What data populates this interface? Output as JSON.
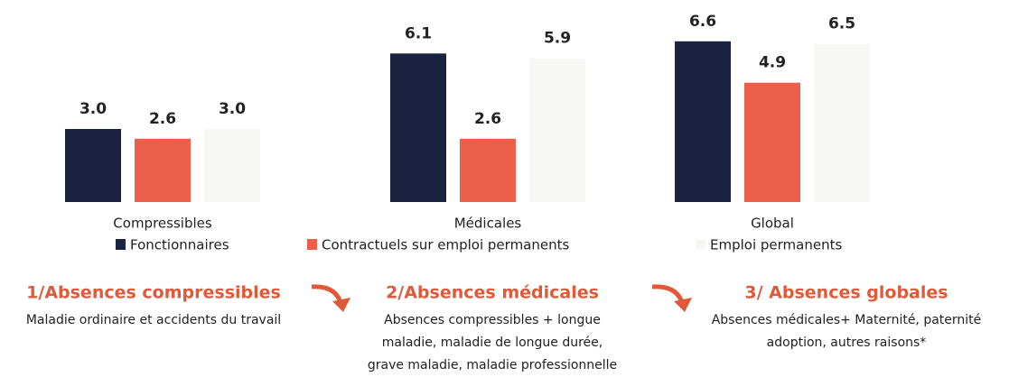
{
  "chart_data": {
    "type": "bar",
    "categories": [
      "Compressibles",
      "Médicales",
      "Global"
    ],
    "series": [
      {
        "name": "Fonctionnaires",
        "color": "#1c2340",
        "values": [
          3.0,
          6.1,
          6.6
        ],
        "value_labels": [
          "3.0",
          "6.1",
          "6.6"
        ]
      },
      {
        "name": "Contractuels sur emploi permanents",
        "color": "#ec5f4a",
        "values": [
          2.6,
          2.6,
          4.9
        ],
        "value_labels": [
          "2.6",
          "2.6",
          "4.9"
        ]
      },
      {
        "name": "Emploi permanents",
        "color": "#f7f7f5",
        "values": [
          3.0,
          5.9,
          6.5
        ],
        "value_labels": [
          "3.0",
          "5.9",
          "6.5"
        ]
      }
    ],
    "annotations": [
      {
        "title": "1/Absences compressibles",
        "lines": [
          "Maladie ordinaire et accidents du travail"
        ]
      },
      {
        "title": "2/Absences médicales",
        "lines": [
          "Absences compressibles + longue",
          "maladie, maladie de longue durée,",
          "grave maladie, maladie professionnelle"
        ]
      },
      {
        "title": "3/ Absences globales",
        "lines": [
          "Absences médicales+ Maternité, paternité",
          "adoption, autres raisons*"
        ]
      }
    ]
  }
}
